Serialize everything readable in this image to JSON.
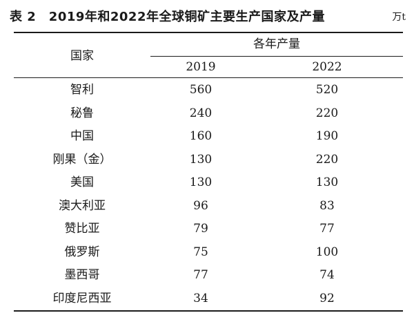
{
  "caption": {
    "main": "表 2　2019年和2022年全球铜矿主要生产国家及产量",
    "unit": "万t"
  },
  "header": {
    "country": "国家",
    "group": "各年产量",
    "years": [
      "2019",
      "2022"
    ]
  },
  "rows": [
    {
      "country": "智利",
      "v2019": "560",
      "v2022": "520"
    },
    {
      "country": "秘鲁",
      "v2019": "240",
      "v2022": "220"
    },
    {
      "country": "中国",
      "v2019": "160",
      "v2022": "190"
    },
    {
      "country": "刚果（金）",
      "v2019": "130",
      "v2022": "220"
    },
    {
      "country": "美国",
      "v2019": "130",
      "v2022": "130"
    },
    {
      "country": "澳大利亚",
      "v2019": "96",
      "v2022": "83"
    },
    {
      "country": "赞比亚",
      "v2019": "79",
      "v2022": "77"
    },
    {
      "country": "俄罗斯",
      "v2019": "75",
      "v2022": "100"
    },
    {
      "country": "墨西哥",
      "v2019": "77",
      "v2022": "74"
    },
    {
      "country": "印度尼西亚",
      "v2019": "34",
      "v2022": "92"
    }
  ]
}
